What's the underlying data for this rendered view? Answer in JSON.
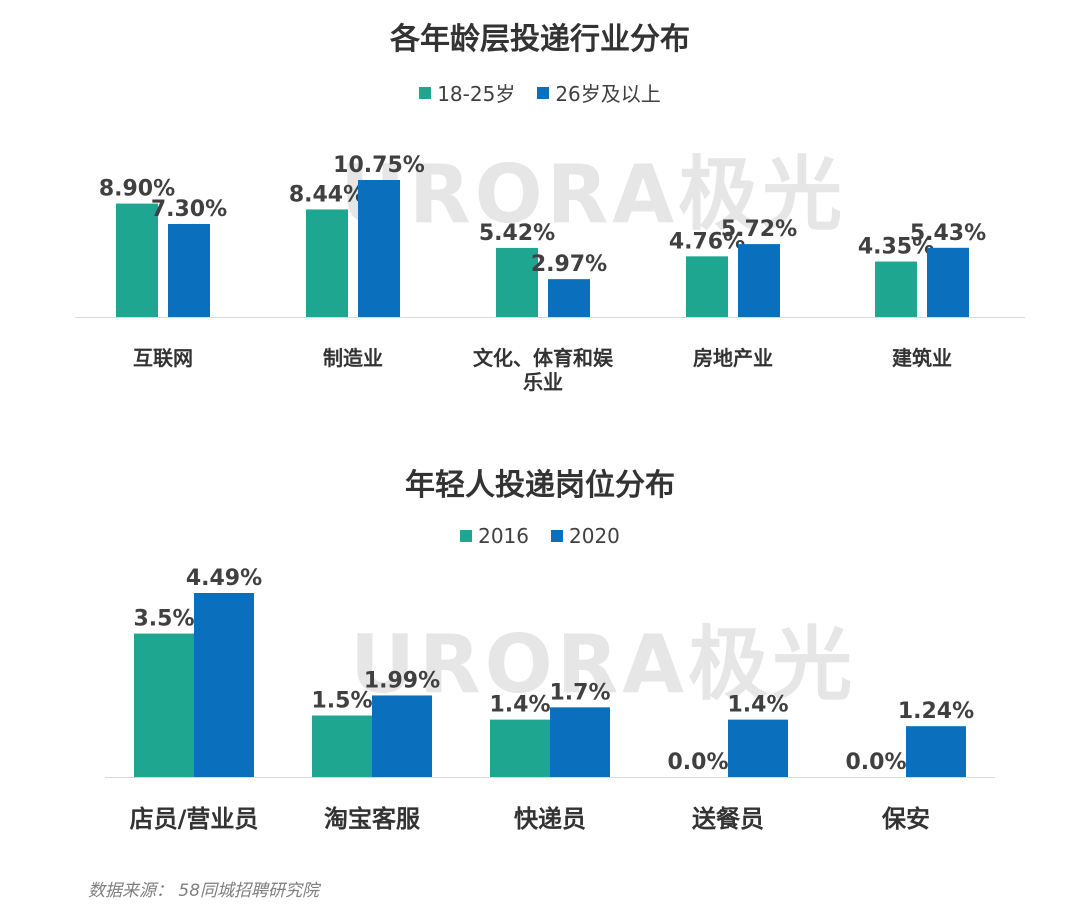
{
  "colors": {
    "series1": "#1ea690",
    "series2": "#0a70bd",
    "axis": "#d9d9d9",
    "label": "#404040"
  },
  "watermark_text": "URORA极光",
  "source_text": "数据来源： 58同城招聘研究院",
  "chart_data": [
    {
      "type": "bar",
      "title": "各年龄层投递行业分布",
      "categories": [
        [
          "互联网"
        ],
        [
          "制造业"
        ],
        [
          "文化、体育和娱",
          "乐业"
        ],
        [
          "房地产业"
        ],
        [
          "建筑业"
        ]
      ],
      "series": [
        {
          "name": "18-25岁",
          "values": [
            8.9,
            8.44,
            5.42,
            4.76,
            4.35
          ],
          "labels": [
            "8.90%",
            "8.44%",
            "5.42%",
            "4.76%",
            "4.35%"
          ]
        },
        {
          "name": "26岁及以上",
          "values": [
            7.3,
            10.75,
            2.97,
            5.72,
            5.43
          ],
          "labels": [
            "7.30%",
            "10.75%",
            "2.97%",
            "5.72%",
            "5.43%"
          ]
        }
      ],
      "ylim": [
        0,
        10.75
      ],
      "unit": "%"
    },
    {
      "type": "bar",
      "title": "年轻人投递岗位分布",
      "categories": [
        [
          "店员/营业员"
        ],
        [
          "淘宝客服"
        ],
        [
          "快递员"
        ],
        [
          "送餐员"
        ],
        [
          "保安"
        ]
      ],
      "series": [
        {
          "name": "2016",
          "values": [
            3.5,
            1.5,
            1.4,
            0.0,
            0.0
          ],
          "labels": [
            "3.5%",
            "1.5%",
            "1.4%",
            "0.0%",
            "0.0%"
          ]
        },
        {
          "name": "2020",
          "values": [
            4.49,
            1.99,
            1.7,
            1.4,
            1.24
          ],
          "labels": [
            "4.49%",
            "1.99%",
            "1.7%",
            "1.4%",
            "1.24%"
          ]
        }
      ],
      "ylim": [
        0,
        4.49
      ],
      "unit": "%"
    }
  ]
}
